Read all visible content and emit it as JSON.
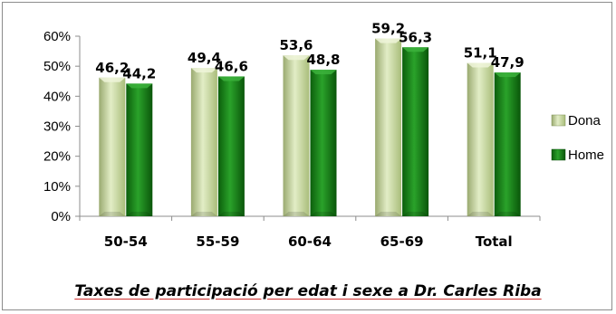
{
  "chart_data": {
    "type": "bar",
    "categories": [
      "50-54",
      "55-59",
      "60-64",
      "65-69",
      "Total"
    ],
    "series": [
      {
        "name": "Dona",
        "values": [
          46.2,
          49.4,
          53.6,
          59.2,
          51.1
        ],
        "labels": [
          "46,2",
          "49,4",
          "53,6",
          "59,2",
          "51,1"
        ],
        "color": "#c3d69b"
      },
      {
        "name": "Home",
        "values": [
          44.2,
          46.6,
          48.8,
          56.3,
          47.9
        ],
        "labels": [
          "44,2",
          "46,6",
          "48,8",
          "56,3",
          "47,9"
        ],
        "color": "#1e8a1e"
      }
    ],
    "yticks": [
      "0%",
      "10%",
      "20%",
      "30%",
      "40%",
      "50%",
      "60%"
    ],
    "ylim": [
      0,
      60
    ],
    "grid": false,
    "legend": "right",
    "title": "Taxes de participació per edat i sexe a Dr. Carles Riba"
  }
}
